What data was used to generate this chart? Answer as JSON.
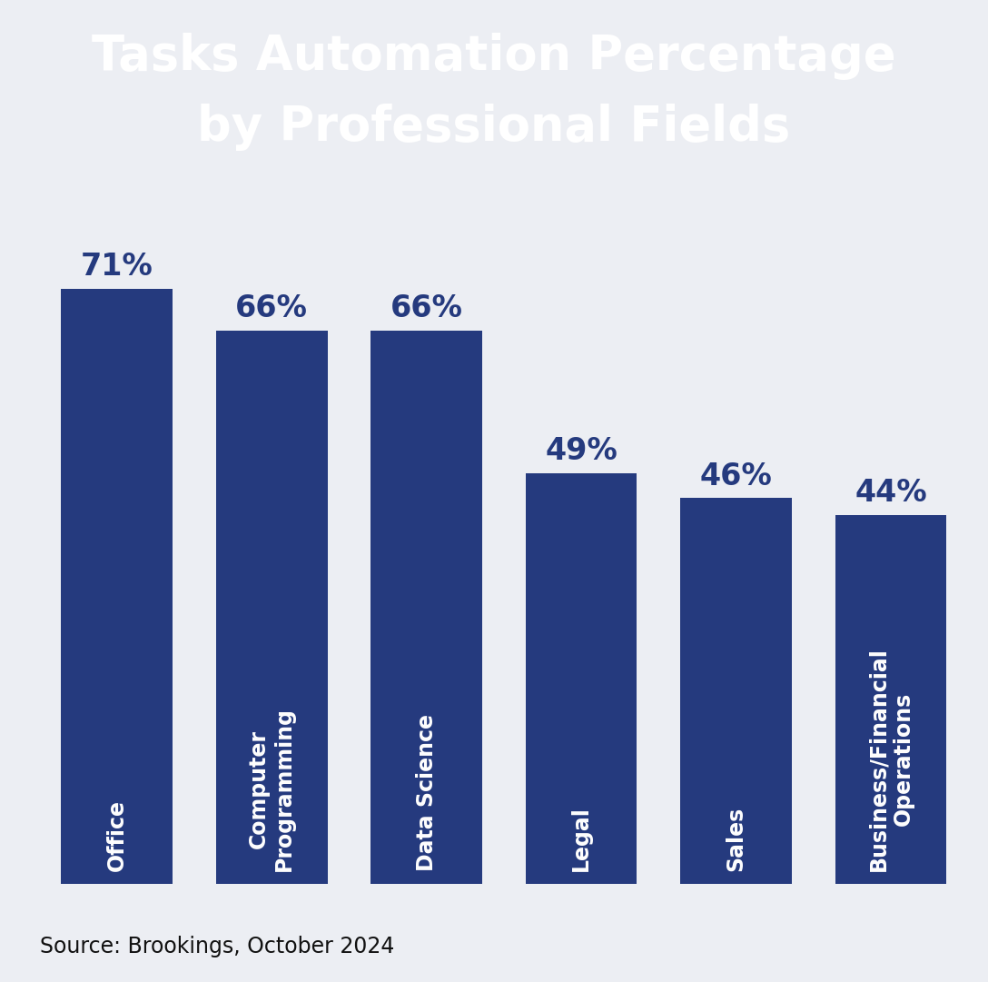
{
  "title_line1": "Tasks Automation Percentage",
  "title_line2": "by Professional Fields",
  "title_bg_color": "#253A7E",
  "title_text_color": "#FFFFFF",
  "bar_color": "#253A7E",
  "bg_color": "#ECEEF3",
  "categories": [
    "Office",
    "Computer\nProgramming",
    "Data Science",
    "Legal",
    "Sales",
    "Business/Financial\nOperations"
  ],
  "values": [
    71,
    66,
    66,
    49,
    46,
    44
  ],
  "value_labels": [
    "71%",
    "66%",
    "66%",
    "49%",
    "46%",
    "44%"
  ],
  "source_text": "Source: Brookings, October 2024",
  "source_color": "#111111",
  "label_text_color": "#FFFFFF",
  "value_text_color": "#253A7E",
  "value_fontsize": 24,
  "label_fontsize": 17,
  "source_fontsize": 17,
  "title_fontsize": 38
}
